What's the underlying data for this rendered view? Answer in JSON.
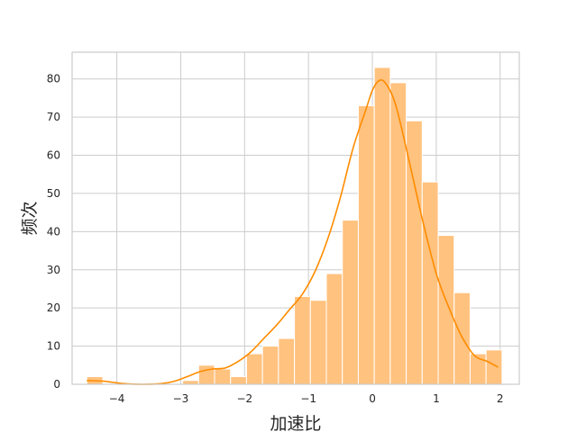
{
  "chart_data": {
    "type": "bar",
    "subtype": "histogram with kde line",
    "xlabel": "加速比",
    "ylabel": "频次",
    "xlim": [
      -4.7,
      2.3
    ],
    "ylim": [
      0,
      87
    ],
    "xticks": [
      -4,
      -3,
      -2,
      -1,
      0,
      1,
      2
    ],
    "xtick_labels": [
      "−4",
      "−3",
      "−2",
      "−1",
      "0",
      "1",
      "2"
    ],
    "yticks": [
      0,
      10,
      20,
      30,
      40,
      50,
      60,
      70,
      80
    ],
    "yticks_labels": [
      "0",
      "10",
      "20",
      "30",
      "40",
      "50",
      "60",
      "70",
      "80"
    ],
    "grid": true,
    "bar_color": "#ffc27f",
    "line_color": "#ff8c00",
    "grid_color": "#cccccc",
    "bins": [
      {
        "x0": -4.47,
        "x1": -4.22,
        "count": 2
      },
      {
        "x0": -4.22,
        "x1": -3.97,
        "count": 0
      },
      {
        "x0": -3.97,
        "x1": -3.72,
        "count": 0
      },
      {
        "x0": -3.72,
        "x1": -3.47,
        "count": 0
      },
      {
        "x0": -3.47,
        "x1": -3.22,
        "count": 0
      },
      {
        "x0": -3.22,
        "x1": -2.97,
        "count": 0
      },
      {
        "x0": -2.97,
        "x1": -2.72,
        "count": 1
      },
      {
        "x0": -2.72,
        "x1": -2.47,
        "count": 5
      },
      {
        "x0": -2.47,
        "x1": -2.22,
        "count": 4
      },
      {
        "x0": -2.22,
        "x1": -1.97,
        "count": 2
      },
      {
        "x0": -1.97,
        "x1": -1.72,
        "count": 8
      },
      {
        "x0": -1.72,
        "x1": -1.47,
        "count": 10
      },
      {
        "x0": -1.47,
        "x1": -1.22,
        "count": 12
      },
      {
        "x0": -1.22,
        "x1": -0.97,
        "count": 23
      },
      {
        "x0": -0.97,
        "x1": -0.72,
        "count": 22
      },
      {
        "x0": -0.72,
        "x1": -0.47,
        "count": 29
      },
      {
        "x0": -0.47,
        "x1": -0.22,
        "count": 43
      },
      {
        "x0": -0.22,
        "x1": 0.03,
        "count": 73
      },
      {
        "x0": 0.03,
        "x1": 0.28,
        "count": 83
      },
      {
        "x0": 0.28,
        "x1": 0.53,
        "count": 79
      },
      {
        "x0": 0.53,
        "x1": 0.78,
        "count": 69
      },
      {
        "x0": 0.78,
        "x1": 1.03,
        "count": 53
      },
      {
        "x0": 1.03,
        "x1": 1.28,
        "count": 39
      },
      {
        "x0": 1.28,
        "x1": 1.53,
        "count": 24
      },
      {
        "x0": 1.53,
        "x1": 1.78,
        "count": 8
      },
      {
        "x0": 1.78,
        "x1": 2.03,
        "count": 9
      }
    ],
    "kde": {
      "x": [
        -4.47,
        -4.2,
        -3.9,
        -3.6,
        -3.3,
        -3.1,
        -2.9,
        -2.7,
        -2.5,
        -2.3,
        -2.1,
        -1.9,
        -1.7,
        -1.5,
        -1.3,
        -1.1,
        -0.9,
        -0.7,
        -0.5,
        -0.3,
        -0.1,
        0.0,
        0.1,
        0.2,
        0.35,
        0.5,
        0.65,
        0.8,
        1.0,
        1.2,
        1.4,
        1.6,
        1.8,
        1.97
      ],
      "y": [
        1,
        0.8,
        0.2,
        0,
        0.2,
        0.8,
        2,
        3.3,
        4,
        4.3,
        6,
        8.5,
        12,
        15.5,
        19.5,
        23.5,
        29.5,
        38,
        49,
        62,
        72,
        77,
        79.5,
        79,
        74,
        64,
        53,
        42,
        29,
        20,
        12.5,
        7.5,
        6,
        4.5
      ]
    }
  }
}
